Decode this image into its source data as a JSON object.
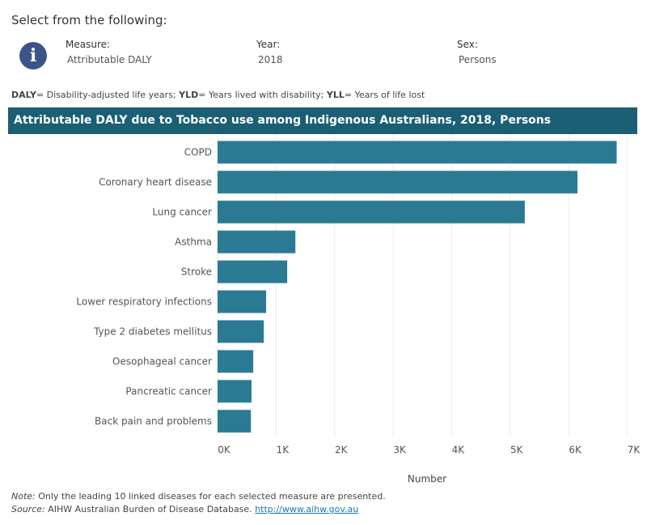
{
  "select_title": "Select from the following:",
  "filters": {
    "measure": {
      "label": "Measure:",
      "value": "Attributable DALY"
    },
    "year": {
      "label": "Year:",
      "value": "2018"
    },
    "sex": {
      "label": "Sex:",
      "value": "Persons"
    }
  },
  "abbreviations": [
    {
      "term": "DALY",
      "definition": "= Disability-adjusted life years; "
    },
    {
      "term": "YLD",
      "definition": "= Years lived with disability; "
    },
    {
      "term": "YLL",
      "definition": "= Years of life lost"
    }
  ],
  "chart_header": "Attributable DALY due to Tobacco use among Indigenous Australians, 2018, Persons",
  "chart_data": {
    "type": "bar",
    "orientation": "horizontal",
    "title": "Attributable DALY due to Tobacco use among Indigenous Australians, 2018, Persons",
    "categories": [
      "COPD",
      "Coronary heart disease",
      "Lung cancer",
      "Asthma",
      "Stroke",
      "Lower respiratory infections",
      "Type 2 diabetes mellitus",
      "Oesophageal cancer",
      "Pancreatic cancer",
      "Back pain and problems"
    ],
    "values": [
      6820,
      6150,
      5250,
      1330,
      1190,
      830,
      790,
      610,
      580,
      570
    ],
    "xlabel": "Number",
    "xlim": [
      0,
      7200
    ],
    "xticks": [
      0,
      1000,
      2000,
      3000,
      4000,
      5000,
      6000,
      7000
    ],
    "xtick_labels": [
      "0K",
      "1K",
      "2K",
      "3K",
      "4K",
      "5K",
      "6K",
      "7K"
    ],
    "grid": true,
    "bar_color": "#2b7a94"
  },
  "footnotes": {
    "note_label": "Note:",
    "note_text": " Only the leading 10 linked diseases for each selected measure are presented.",
    "source_label": "Source:",
    "source_text": " AIHW Australian Burden of Disease Database. ",
    "source_link": "http://www.aihw.gov.au"
  },
  "icons": {
    "info": "info-icon"
  },
  "colors": {
    "header_bg": "#1a5f74",
    "bar": "#2b7a94",
    "info_icon": "#3c5488"
  }
}
